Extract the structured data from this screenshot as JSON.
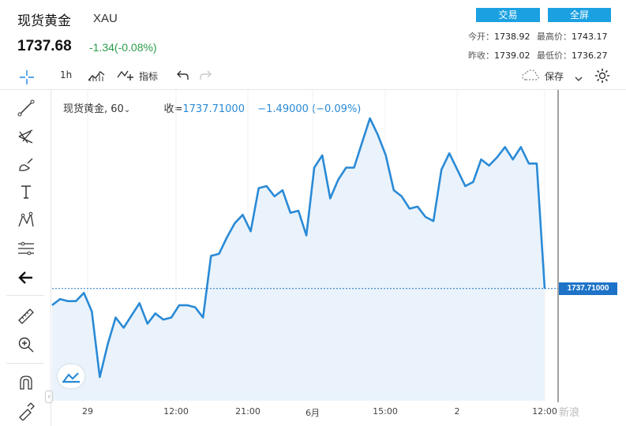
{
  "header": {
    "title": "现货黄金",
    "symbol": "XAU",
    "price": "1737.68",
    "change": "-1.34(-0.08%)",
    "trade_button": "交易",
    "fullscreen_button": "全屏",
    "stats": {
      "open_label": "今开：",
      "open": "1738.92",
      "high_label": "最高价：",
      "high": "1743.17",
      "prev_label": "昨收：",
      "prev": "1739.02",
      "low_label": "最低价：",
      "low": "1736.27"
    }
  },
  "toolbar": {
    "interval": "1h",
    "indicators": "指标",
    "save": "保存"
  },
  "legend": {
    "name": "现货黄金, 60",
    "close_label": "收=",
    "close": "1737.71000",
    "change": "−1.49000 (−0.09%)"
  },
  "price_tag": "1737.71000",
  "watermark": "新浪",
  "colors": {
    "line": "#2a8ad6",
    "fill": "#eaf3fb",
    "up": "#2a9d4a",
    "accent": "#1ba1e2",
    "tag": "#1e73c8"
  },
  "chart_data": {
    "type": "area",
    "series": [
      {
        "values": [
          1736.9,
          1737.2,
          1737.1,
          1737.1,
          1737.5,
          1736.6,
          1733.4,
          1735.0,
          1736.3,
          1735.8,
          1736.4,
          1737.0,
          1736.0,
          1736.5,
          1736.2,
          1736.3,
          1736.9,
          1736.9,
          1736.8,
          1736.3,
          1739.3,
          1739.4,
          1740.2,
          1740.9,
          1741.3,
          1740.5,
          1742.6,
          1742.7,
          1742.2,
          1742.5,
          1741.4,
          1741.5,
          1740.3,
          1743.6,
          1744.2,
          1742.1,
          1743.0,
          1743.6,
          1743.6,
          1744.8,
          1746.0,
          1745.2,
          1744.2,
          1742.5,
          1742.2,
          1741.6,
          1741.7,
          1741.2,
          1741.0,
          1743.5,
          1744.3,
          1743.5,
          1742.7,
          1742.9,
          1744.0,
          1743.7,
          1744.1,
          1744.6,
          1744.0,
          1744.6,
          1743.8,
          1743.8,
          1737.71
        ]
      }
    ],
    "x_tick_labels": [
      "29",
      "12:00",
      "21:00",
      "6月",
      "15:00",
      "2",
      "12:00"
    ],
    "last_value": 1737.71
  }
}
